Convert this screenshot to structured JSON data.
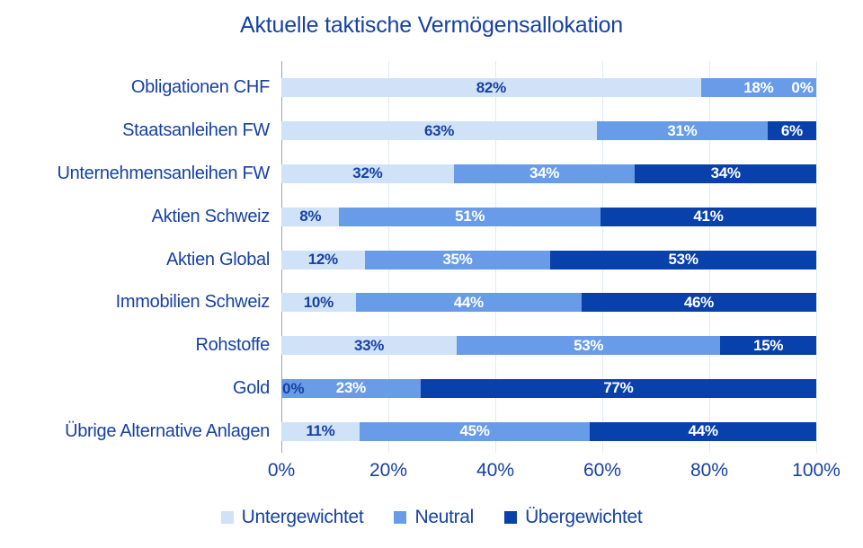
{
  "title": "Aktuelle taktische Vermögensallokation",
  "colors": {
    "text_blue": "#1741A3",
    "underweight": "#D0E2F7",
    "neutral": "#699CE8",
    "overweight": "#0941AC",
    "gridline": "#E2EAF4",
    "axis_line": "#98A3B8"
  },
  "chart_data": {
    "type": "bar",
    "stacked": true,
    "orientation": "horizontal",
    "title": "Aktuelle taktische Vermögensallokation",
    "categories": [
      "Obligationen CHF",
      "Staatsanleihen FW",
      "Unternehmensanleihen FW",
      "Aktien Schweiz",
      "Aktien Global",
      "Immobilien Schweiz",
      "Rohstoffe",
      "Gold",
      "Übrige Alternative Anlagen"
    ],
    "series": [
      {
        "name": "Untergewichtet",
        "color": "#D0E2F7",
        "label_color": "#1741A3",
        "values": [
          82,
          63,
          32,
          8,
          12,
          10,
          33,
          0,
          11
        ]
      },
      {
        "name": "Neutral",
        "color": "#699CE8",
        "label_color": "#ffffff",
        "values": [
          18,
          31,
          34,
          51,
          35,
          44,
          53,
          23,
          45
        ]
      },
      {
        "name": "Übergewichtet",
        "color": "#0941AC",
        "label_color": "#ffffff",
        "values": [
          0,
          6,
          34,
          41,
          53,
          46,
          15,
          77,
          44
        ]
      }
    ],
    "value_suffix": "%",
    "x_ticks": [
      "0%",
      "20%",
      "40%",
      "60%",
      "80%",
      "100%"
    ],
    "xlim": [
      0,
      100
    ],
    "grid": true,
    "legend_position": "bottom"
  }
}
